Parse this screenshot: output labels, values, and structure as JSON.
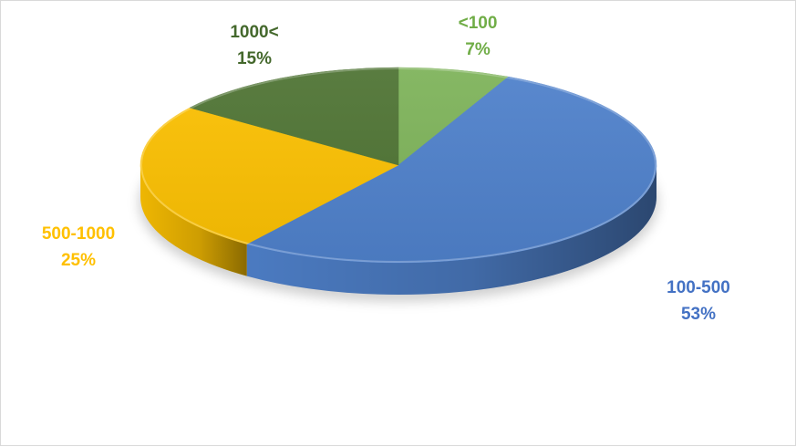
{
  "chart_data": {
    "type": "pie",
    "style": "3d",
    "title": "",
    "slices": [
      {
        "label": "<100",
        "value": 7,
        "percent_label": "7%",
        "color": "#7eb35a",
        "label_color": "#70ad47"
      },
      {
        "label": "100-500",
        "value": 53,
        "percent_label": "53%",
        "color": "#4f81cb",
        "label_color": "#4472c4"
      },
      {
        "label": "500-1000",
        "value": 25,
        "percent_label": "25%",
        "color": "#fbc002",
        "label_color": "#ffc000"
      },
      {
        "label": "1000<",
        "value": 15,
        "percent_label": "15%",
        "color": "#4f7434",
        "label_color": "#44682c"
      }
    ],
    "legend": "none"
  }
}
